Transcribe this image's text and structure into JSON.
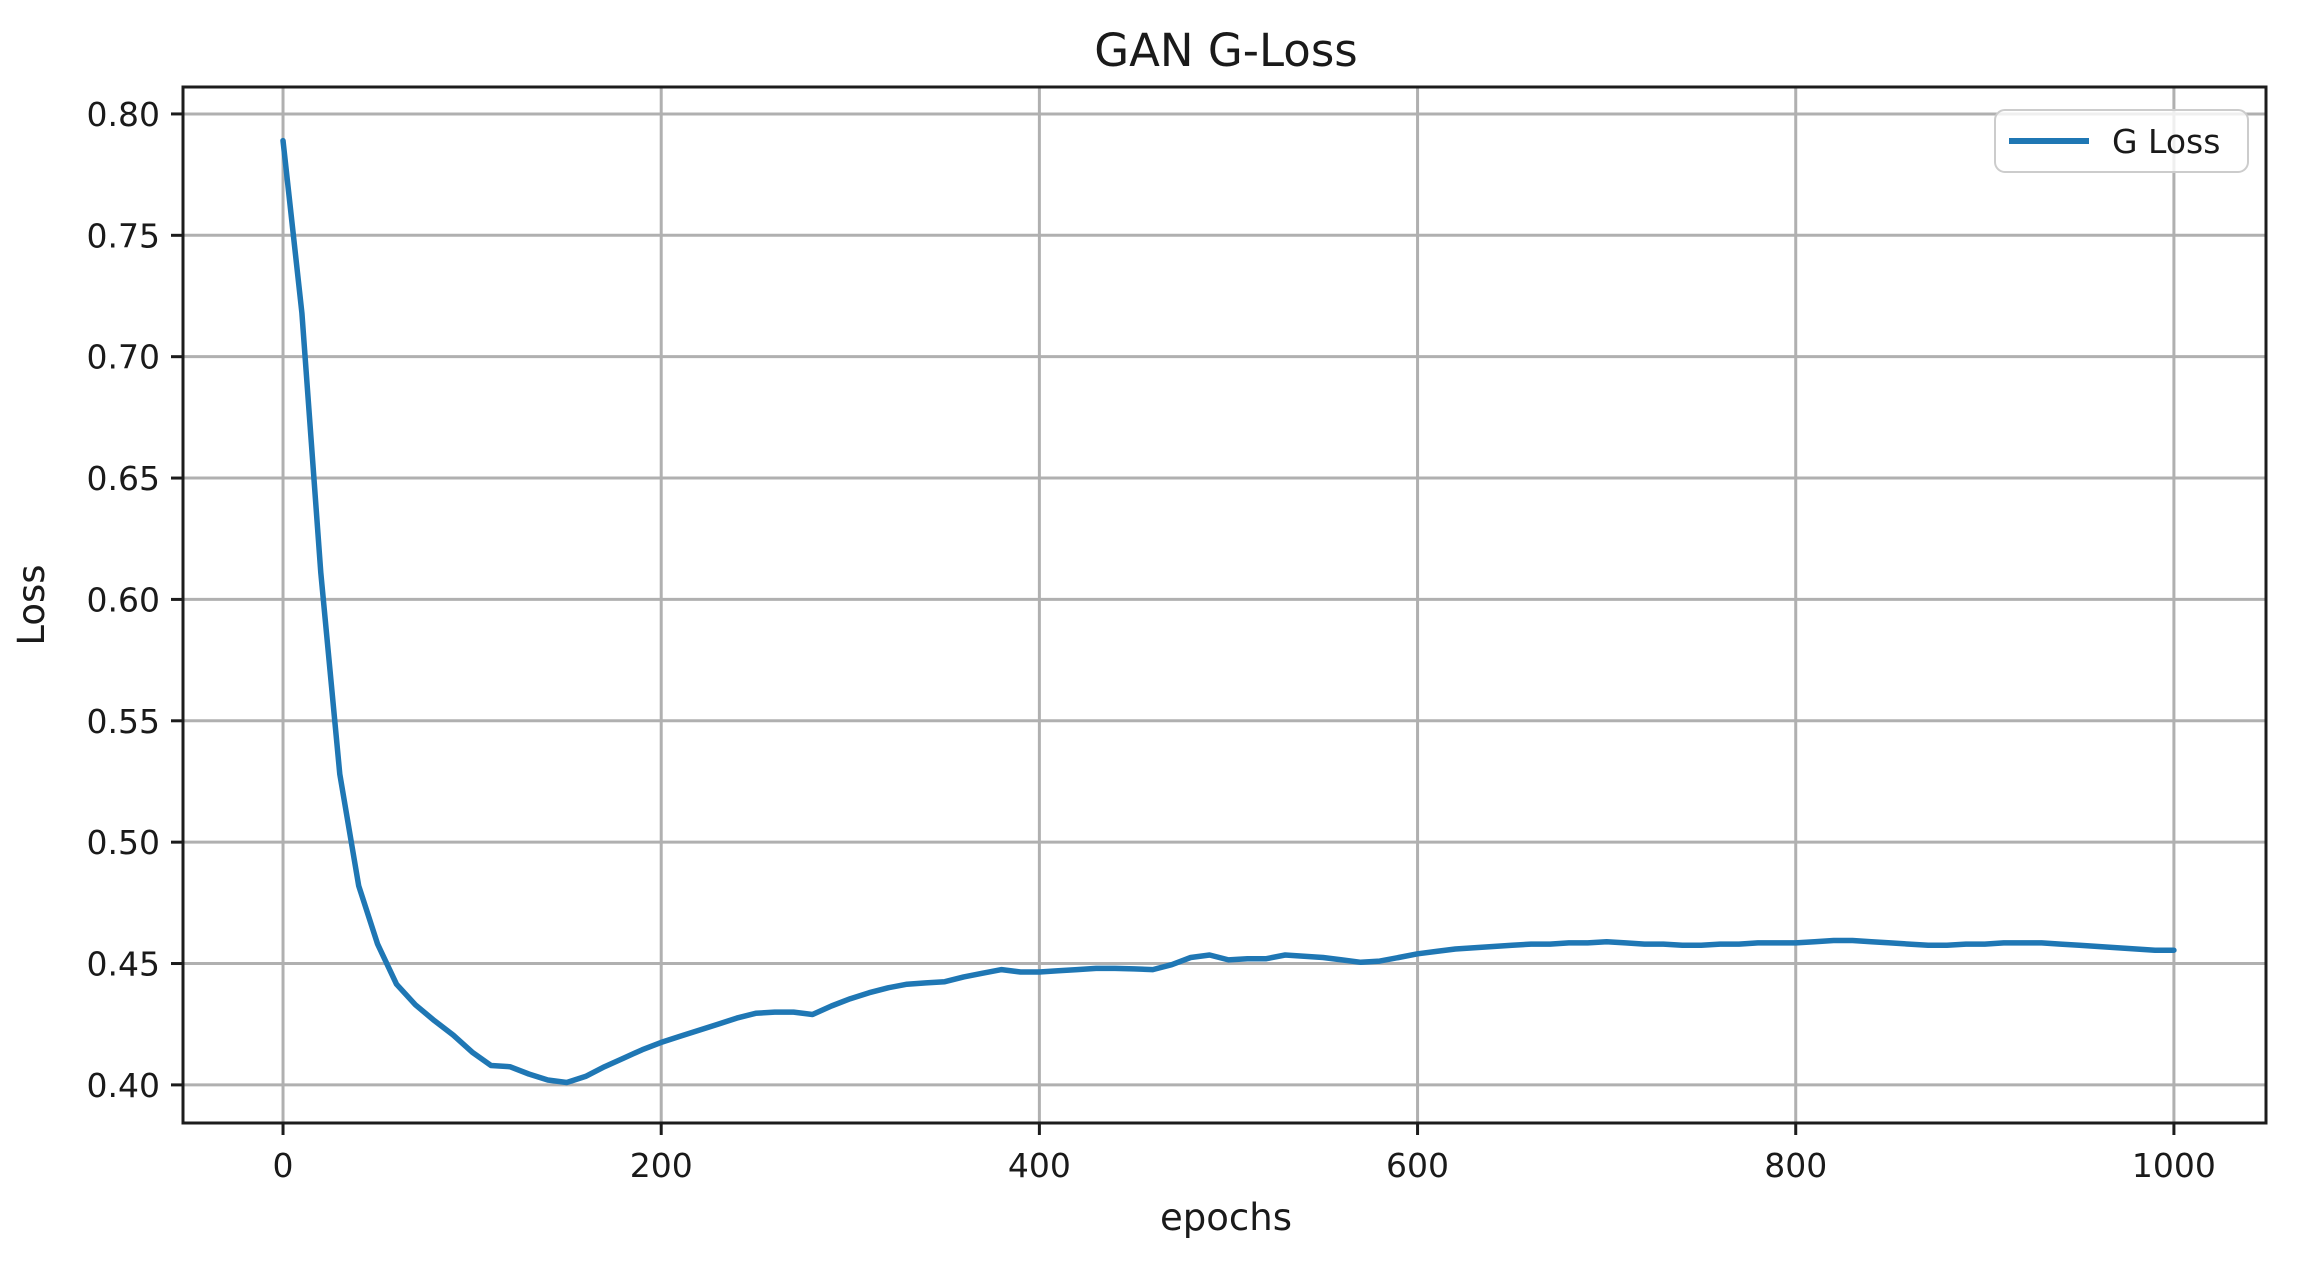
{
  "figure": {
    "title": "GAN G-Loss"
  },
  "colors": {
    "line": "#1f77b4",
    "grid": "#b0b0b0",
    "spine": "#1c1c1c",
    "text": "#1a1a1a",
    "legend_border": "#cccccc",
    "background": "#ffffff"
  },
  "legend": {
    "label": "G Loss"
  },
  "chart_data": {
    "type": "line",
    "title": "GAN G-Loss",
    "xlabel": "epochs",
    "ylabel": "Loss",
    "xlim": [
      -52.9,
      1048.7
    ],
    "ylim": [
      0.3843,
      0.8111
    ],
    "grid": true,
    "legend_position": "upper right",
    "xticks": [
      0,
      200,
      400,
      600,
      800,
      1000
    ],
    "xtick_labels": [
      "0",
      "200",
      "400",
      "600",
      "800",
      "1000"
    ],
    "yticks": [
      0.4,
      0.45,
      0.5,
      0.55,
      0.6,
      0.65,
      0.7,
      0.75,
      0.8
    ],
    "ytick_labels": [
      "0.40",
      "0.45",
      "0.50",
      "0.55",
      "0.60",
      "0.65",
      "0.70",
      "0.75",
      "0.80"
    ],
    "series": [
      {
        "name": "G Loss",
        "color": "#1f77b4",
        "x": [
          0,
          10,
          20,
          30,
          40,
          50,
          60,
          70,
          80,
          90,
          100,
          110,
          120,
          130,
          140,
          150,
          160,
          170,
          180,
          190,
          200,
          210,
          220,
          230,
          240,
          250,
          260,
          270,
          280,
          290,
          300,
          310,
          320,
          330,
          340,
          350,
          360,
          370,
          380,
          390,
          400,
          410,
          420,
          430,
          440,
          450,
          460,
          470,
          480,
          490,
          500,
          510,
          520,
          530,
          540,
          550,
          560,
          570,
          580,
          590,
          600,
          610,
          620,
          630,
          640,
          650,
          660,
          670,
          680,
          690,
          700,
          710,
          720,
          730,
          740,
          750,
          760,
          770,
          780,
          790,
          800,
          810,
          820,
          830,
          840,
          850,
          860,
          870,
          880,
          890,
          900,
          910,
          920,
          930,
          940,
          950,
          960,
          970,
          980,
          990,
          1000
        ],
        "y": [
          0.789,
          0.718,
          0.611,
          0.528,
          0.482,
          0.458,
          0.4415,
          0.433,
          0.4265,
          0.4205,
          0.4135,
          0.408,
          0.4075,
          0.4045,
          0.402,
          0.401,
          0.4035,
          0.4075,
          0.411,
          0.4145,
          0.4175,
          0.42,
          0.4225,
          0.425,
          0.4275,
          0.4295,
          0.43,
          0.43,
          0.429,
          0.4325,
          0.4355,
          0.438,
          0.44,
          0.4415,
          0.442,
          0.4425,
          0.4445,
          0.446,
          0.4475,
          0.4465,
          0.4465,
          0.447,
          0.4475,
          0.448,
          0.448,
          0.4478,
          0.4475,
          0.4495,
          0.4525,
          0.4535,
          0.4515,
          0.452,
          0.452,
          0.4535,
          0.453,
          0.4525,
          0.4515,
          0.4505,
          0.451,
          0.4525,
          0.454,
          0.455,
          0.456,
          0.4565,
          0.457,
          0.4575,
          0.458,
          0.458,
          0.4585,
          0.4585,
          0.459,
          0.4585,
          0.458,
          0.458,
          0.4575,
          0.4575,
          0.458,
          0.458,
          0.4585,
          0.4585,
          0.4585,
          0.459,
          0.4595,
          0.4595,
          0.459,
          0.4585,
          0.458,
          0.4575,
          0.4575,
          0.458,
          0.458,
          0.4585,
          0.4585,
          0.4585,
          0.458,
          0.4575,
          0.457,
          0.4565,
          0.456,
          0.4555,
          0.4555
        ]
      }
    ]
  }
}
